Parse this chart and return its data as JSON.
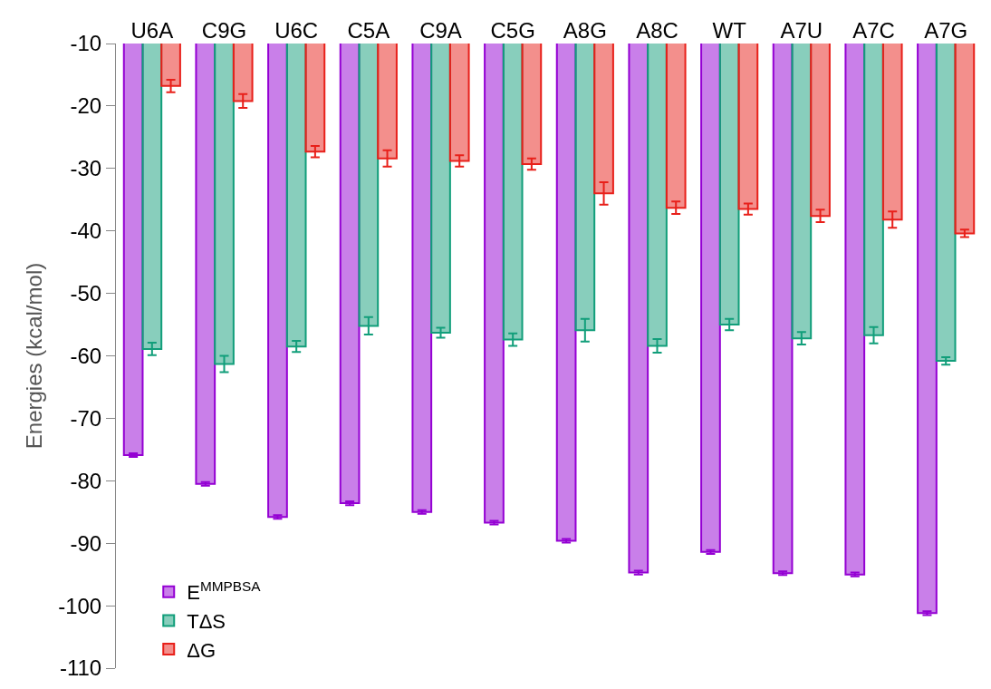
{
  "chart_data": {
    "type": "bar",
    "ylabel": "Energies (kcal/mol)",
    "categories": [
      "U6A",
      "C9G",
      "U6C",
      "C5A",
      "C9A",
      "C5G",
      "A8G",
      "A8C",
      "WT",
      "A7U",
      "A7C",
      "A7G"
    ],
    "series": [
      {
        "name": "E$^{MMPBSA}$",
        "color": "#9400d3",
        "values": [
          -75.9,
          -80.5,
          -85.8,
          -83.6,
          -85.0,
          -86.7,
          -89.6,
          -94.7,
          -91.4,
          -94.8,
          -95.0,
          -101.2
        ],
        "errors": [
          0.3,
          0.3,
          0.3,
          0.3,
          0.3,
          0.3,
          0.3,
          0.3,
          0.3,
          0.3,
          0.3,
          0.3
        ]
      },
      {
        "name": "TΔS",
        "color": "#119e7a",
        "values": [
          -58.9,
          -61.3,
          -58.5,
          -55.2,
          -56.3,
          -57.4,
          -55.9,
          -58.4,
          -55.0,
          -57.2,
          -56.7,
          -60.8
        ],
        "errors": [
          1.0,
          1.3,
          0.9,
          1.4,
          0.8,
          1.0,
          1.8,
          1.1,
          0.9,
          1.0,
          1.3,
          0.6
        ]
      },
      {
        "name": "ΔG",
        "color": "#e8201a",
        "values": [
          -16.8,
          -19.2,
          -27.3,
          -28.4,
          -28.8,
          -29.3,
          -34.0,
          -36.3,
          -36.5,
          -37.6,
          -38.2,
          -40.4
        ],
        "errors": [
          1.0,
          1.1,
          0.9,
          1.3,
          0.9,
          0.9,
          1.8,
          1.0,
          0.9,
          1.0,
          1.3,
          0.6
        ]
      }
    ],
    "ylim": [
      -110,
      -10
    ],
    "yticks": [
      -110,
      -100,
      -90,
      -80,
      -70,
      -60,
      -50,
      -40,
      -30,
      -20,
      -10
    ],
    "legend": "bottom left",
    "grid": false
  }
}
